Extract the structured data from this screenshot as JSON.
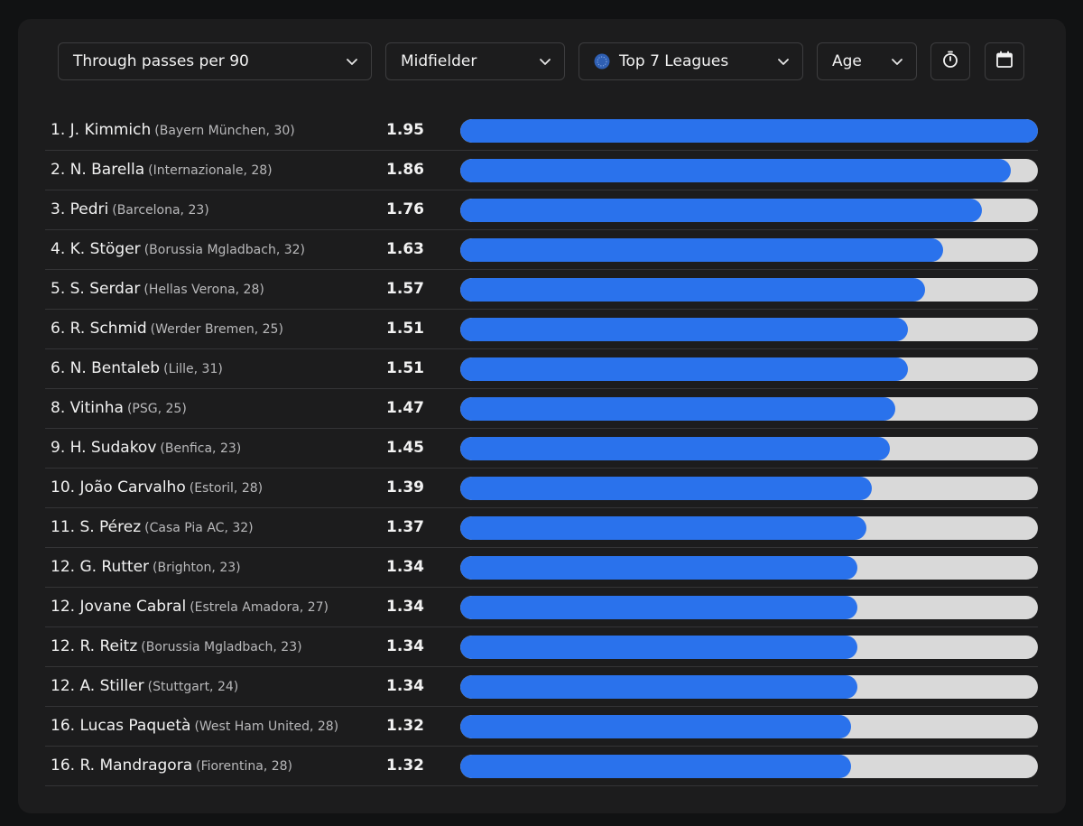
{
  "filters": {
    "metric": "Through passes per 90",
    "position": "Midfielder",
    "league": "Top 7 Leagues",
    "sort": "Age"
  },
  "colors": {
    "bar": "#2a72ec",
    "track": "#d9d9d9",
    "background": "#1c1c1d"
  },
  "icons": {
    "dropdown": "chevron-down-icon",
    "league": "globe-icon",
    "timer": "stopwatch-icon",
    "calendar": "calendar-icon"
  },
  "chart_data": {
    "type": "bar",
    "orientation": "horizontal",
    "xlim": [
      0,
      1.95
    ],
    "categories": [
      "1. J. Kimmich",
      "2. N. Barella",
      "3. Pedri",
      "4. K. Stöger",
      "5. S. Serdar",
      "6. R. Schmid",
      "6. N. Bentaleb",
      "8. Vitinha",
      "9. H. Sudakov",
      "10. João Carvalho",
      "11. S. Pérez",
      "12. G. Rutter",
      "12. Jovane Cabral",
      "12. R. Reitz",
      "12. A. Stiller",
      "16. Lucas Paquetà",
      "16. R. Mandragora"
    ],
    "rows": [
      {
        "label": "1. J. Kimmich",
        "club": "(Bayern München, 30)",
        "value": 1.95,
        "value_label": "1.95"
      },
      {
        "label": "2. N. Barella",
        "club": "(Internazionale, 28)",
        "value": 1.86,
        "value_label": "1.86"
      },
      {
        "label": "3. Pedri",
        "club": "(Barcelona, 23)",
        "value": 1.76,
        "value_label": "1.76"
      },
      {
        "label": "4. K. Stöger",
        "club": "(Borussia Mgladbach, 32)",
        "value": 1.63,
        "value_label": "1.63"
      },
      {
        "label": "5. S. Serdar",
        "club": "(Hellas Verona, 28)",
        "value": 1.57,
        "value_label": "1.57"
      },
      {
        "label": "6. R. Schmid",
        "club": "(Werder Bremen, 25)",
        "value": 1.51,
        "value_label": "1.51"
      },
      {
        "label": "6. N. Bentaleb",
        "club": "(Lille, 31)",
        "value": 1.51,
        "value_label": "1.51"
      },
      {
        "label": "8. Vitinha",
        "club": "(PSG, 25)",
        "value": 1.47,
        "value_label": "1.47"
      },
      {
        "label": "9. H. Sudakov",
        "club": "(Benfica, 23)",
        "value": 1.45,
        "value_label": "1.45"
      },
      {
        "label": "10. João Carvalho",
        "club": "(Estoril, 28)",
        "value": 1.39,
        "value_label": "1.39"
      },
      {
        "label": "11. S. Pérez",
        "club": "(Casa Pia AC, 32)",
        "value": 1.37,
        "value_label": "1.37"
      },
      {
        "label": "12. G. Rutter",
        "club": "(Brighton, 23)",
        "value": 1.34,
        "value_label": "1.34"
      },
      {
        "label": "12. Jovane Cabral",
        "club": "(Estrela Amadora, 27)",
        "value": 1.34,
        "value_label": "1.34"
      },
      {
        "label": "12. R. Reitz",
        "club": "(Borussia Mgladbach, 23)",
        "value": 1.34,
        "value_label": "1.34"
      },
      {
        "label": "12. A. Stiller",
        "club": "(Stuttgart, 24)",
        "value": 1.34,
        "value_label": "1.34"
      },
      {
        "label": "16. Lucas Paquetà",
        "club": "(West Ham United, 28)",
        "value": 1.32,
        "value_label": "1.32"
      },
      {
        "label": "16. R. Mandragora",
        "club": "(Fiorentina, 28)",
        "value": 1.32,
        "value_label": "1.32"
      }
    ]
  }
}
